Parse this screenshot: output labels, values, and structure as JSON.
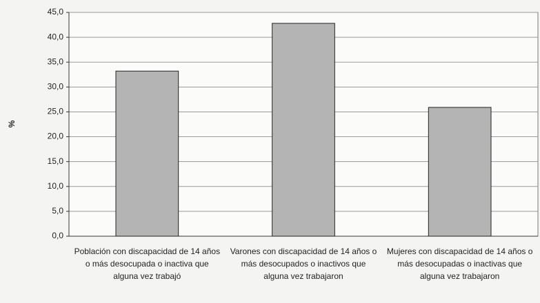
{
  "chart_data": {
    "type": "bar",
    "y_label": "%",
    "categories": [
      "Población con discapacidad de 14 años o más desocupada o inactiva que alguna vez trabajó",
      "Varones con discapacidad de 14 años o más desocupados o inactivos que alguna vez trabajaron",
      "Mujeres con discapacidad de 14 años o más desocupadas o inactivas que alguna vez trabajaron"
    ],
    "values": [
      33.2,
      42.8,
      25.9
    ],
    "color": "#b4b4b4",
    "ylim": [
      0,
      45
    ],
    "yticks": [
      {
        "value": 0,
        "label": "0,0"
      },
      {
        "value": 5,
        "label": "5,0"
      },
      {
        "value": 10,
        "label": "10,0"
      },
      {
        "value": 15,
        "label": "15,0"
      },
      {
        "value": 20,
        "label": "20,0"
      },
      {
        "value": 25,
        "label": "25,0"
      },
      {
        "value": 30,
        "label": "30,0"
      },
      {
        "value": 35,
        "label": "35,0"
      },
      {
        "value": 40,
        "label": "40,0"
      },
      {
        "value": 45,
        "label": "45,0"
      }
    ],
    "grid": true
  }
}
